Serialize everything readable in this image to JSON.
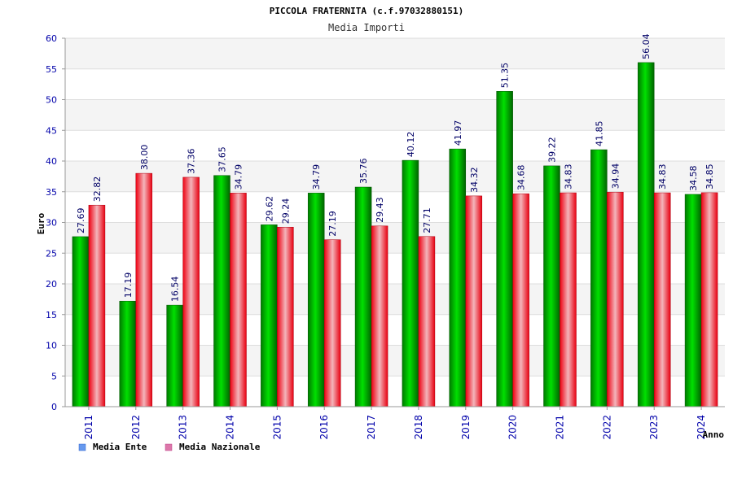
{
  "chart_data": {
    "type": "bar",
    "title": "PICCOLA FRATERNITA (c.f.97032880151)",
    "subtitle": "Media Importi",
    "xlabel": "Anno",
    "ylabel": "Euro",
    "ylim": [
      0,
      60
    ],
    "y_ticks": [
      "0",
      "5",
      "10",
      "15",
      "20",
      "25",
      "30",
      "35",
      "40",
      "45",
      "50",
      "55",
      "60"
    ],
    "grid": true,
    "legend_position": "bottom-left",
    "categories": [
      "2011",
      "2012",
      "2013",
      "2014",
      "2015",
      "2016",
      "2017",
      "2018",
      "2019",
      "2020",
      "2021",
      "2022",
      "2023",
      "2024"
    ],
    "series": [
      {
        "name": "Media Ente",
        "legend_color": "#6699ee",
        "bar_color": "#00aa00",
        "values": [
          27.69,
          17.19,
          16.54,
          37.65,
          29.62,
          34.79,
          35.76,
          40.12,
          41.97,
          51.35,
          39.22,
          41.85,
          56.04,
          34.58
        ],
        "labels": [
          "27.69",
          "17.19",
          "16.54",
          "37.65",
          "29.62",
          "34.79",
          "35.76",
          "40.12",
          "41.97",
          "51.35",
          "39.22",
          "41.85",
          "56.04",
          "34.58"
        ]
      },
      {
        "name": "Media Nazionale",
        "legend_color": "#dd77aa",
        "bar_color": "#ee1122",
        "values": [
          32.82,
          38.0,
          37.36,
          34.79,
          29.24,
          27.19,
          29.43,
          27.71,
          34.32,
          34.68,
          34.83,
          34.94,
          34.83,
          34.85
        ],
        "labels": [
          "32.82",
          "38.00",
          "37.36",
          "34.79",
          "29.24",
          "27.19",
          "29.43",
          "27.71",
          "34.32",
          "34.68",
          "34.83",
          "34.94",
          "34.83",
          "34.85"
        ]
      }
    ]
  }
}
